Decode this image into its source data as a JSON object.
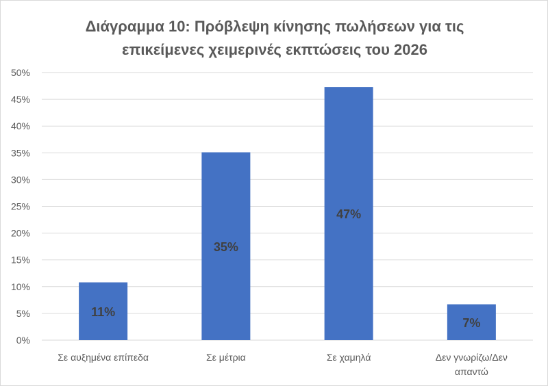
{
  "chart_data": {
    "type": "bar",
    "title_lines": [
      "Διάγραμμα 10: Πρόβλεψη κίνησης πωλήσεων για τις",
      "επικείμενες χειμερινές εκπτώσεις του 2026"
    ],
    "categories": [
      [
        "Σε αυξημένα επίπεδα"
      ],
      [
        "Σε μέτρια"
      ],
      [
        "Σε χαμηλά"
      ],
      [
        "Δεν γνωρίζω/Δεν",
        "απαντώ"
      ]
    ],
    "values": [
      10.8,
      35.1,
      47.3,
      6.7
    ],
    "data_labels": [
      "11%",
      "35%",
      "47%",
      "7%"
    ],
    "yticks": [
      0,
      5,
      10,
      15,
      20,
      25,
      30,
      35,
      40,
      45,
      50
    ],
    "ytick_labels": [
      "0%",
      "5%",
      "10%",
      "15%",
      "20%",
      "25%",
      "30%",
      "35%",
      "40%",
      "45%",
      "50%"
    ],
    "ylim": [
      0,
      50
    ],
    "grid": true,
    "legend": "none",
    "bar_color": "#4472C4",
    "grid_color": "#d9d9d9"
  }
}
